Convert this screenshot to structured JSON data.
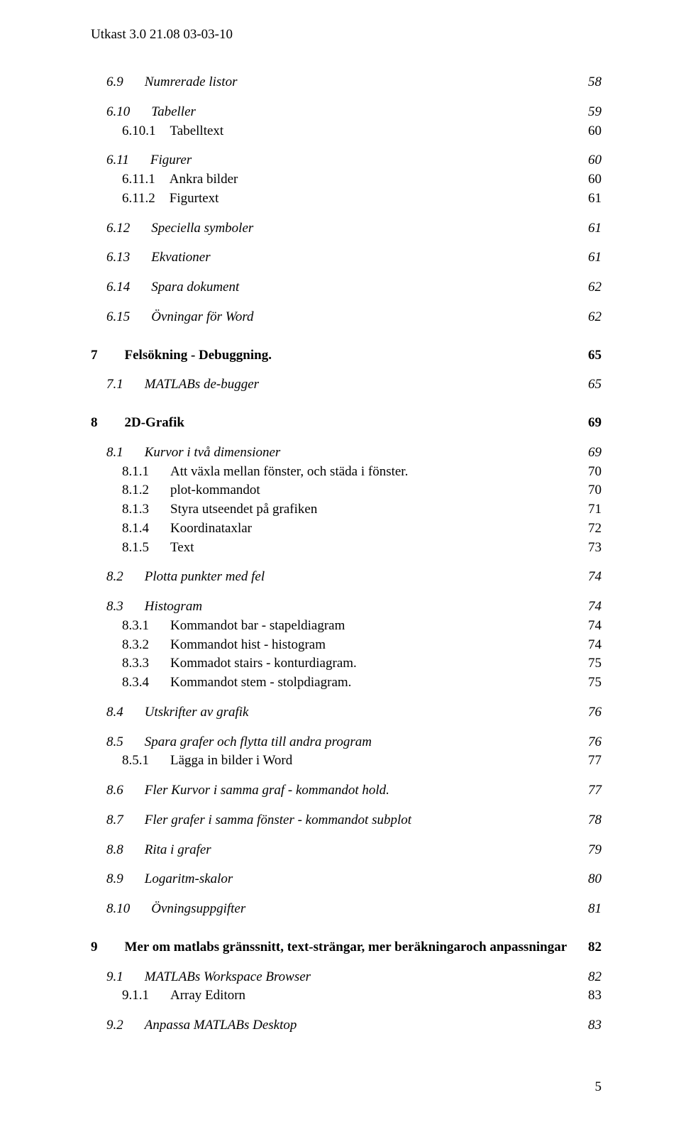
{
  "header": "Utkast 3.0  21.08 03-03-10",
  "page_number": "5",
  "entries": [
    {
      "lvl": 1,
      "num": "6.9",
      "title": "Numrerade listor",
      "page": "58",
      "style": "italic",
      "gap": ""
    },
    {
      "lvl": 1,
      "num": "6.10",
      "title": "Tabeller",
      "page": "59",
      "style": "italic",
      "gap": "md"
    },
    {
      "lvl": 2,
      "num": "6.10.1",
      "title": "Tabelltext",
      "page": "60",
      "style": "",
      "gap": "sm"
    },
    {
      "lvl": 1,
      "num": "6.11",
      "title": "Figurer",
      "page": "60",
      "style": "italic",
      "gap": "md"
    },
    {
      "lvl": 2,
      "num": "6.11.1",
      "title": "Ankra bilder",
      "page": "60",
      "style": "",
      "gap": "sm"
    },
    {
      "lvl": 2,
      "num": "6.11.2",
      "title": "Figurtext",
      "page": "61",
      "style": "",
      "gap": "sm"
    },
    {
      "lvl": 1,
      "num": "6.12",
      "title": "Speciella symboler",
      "page": "61",
      "style": "italic",
      "gap": "md"
    },
    {
      "lvl": 1,
      "num": "6.13",
      "title": "Ekvationer",
      "page": "61",
      "style": "italic",
      "gap": "md"
    },
    {
      "lvl": 1,
      "num": "6.14",
      "title": "Spara dokument",
      "page": "62",
      "style": "italic",
      "gap": "md"
    },
    {
      "lvl": 1,
      "num": "6.15",
      "title": "Övningar för Word",
      "page": "62",
      "style": "italic",
      "gap": "md"
    },
    {
      "lvl": 0,
      "num": "7",
      "title": "Felsökning - Debuggning.",
      "page": "65",
      "style": "bold",
      "gap": "lg"
    },
    {
      "lvl": 1,
      "num": "7.1",
      "title": "MATLABs de-bugger",
      "page": "65",
      "style": "italic sc",
      "gap": "md"
    },
    {
      "lvl": 0,
      "num": "8",
      "title": "2D-Grafik",
      "page": "69",
      "style": "bold",
      "gap": "lg"
    },
    {
      "lvl": 1,
      "num": "8.1",
      "title": "Kurvor i två dimensioner",
      "page": "69",
      "style": "italic",
      "gap": "md"
    },
    {
      "lvl": 2,
      "num": "8.1.1",
      "title": "Att växla mellan fönster, och städa i fönster.",
      "page": "70",
      "style": "",
      "gap": "sm"
    },
    {
      "lvl": 2,
      "num": "8.1.2",
      "title": "plot-kommandot",
      "page": "70",
      "style": "",
      "gap": "sm"
    },
    {
      "lvl": 2,
      "num": "8.1.3",
      "title": "Styra utseendet på grafiken",
      "page": "71",
      "style": "",
      "gap": "sm"
    },
    {
      "lvl": 2,
      "num": "8.1.4",
      "title": "Koordinataxlar",
      "page": "72",
      "style": "",
      "gap": "sm"
    },
    {
      "lvl": 2,
      "num": "8.1.5",
      "title": "Text",
      "page": "73",
      "style": "",
      "gap": "sm"
    },
    {
      "lvl": 1,
      "num": "8.2",
      "title": "Plotta punkter med fel",
      "page": "74",
      "style": "italic",
      "gap": "md"
    },
    {
      "lvl": 1,
      "num": "8.3",
      "title": "Histogram",
      "page": "74",
      "style": "italic",
      "gap": "md"
    },
    {
      "lvl": 2,
      "num": "8.3.1",
      "title": "Kommandot bar - stapeldiagram",
      "page": "74",
      "style": "",
      "gap": "sm"
    },
    {
      "lvl": 2,
      "num": "8.3.2",
      "title": "Kommandot hist - histogram",
      "page": "74",
      "style": "",
      "gap": "sm"
    },
    {
      "lvl": 2,
      "num": "8.3.3",
      "title": "Kommadot stairs - konturdiagram.",
      "page": "75",
      "style": "",
      "gap": "sm"
    },
    {
      "lvl": 2,
      "num": "8.3.4",
      "title": "Kommandot stem - stolpdiagram.",
      "page": "75",
      "style": "",
      "gap": "sm"
    },
    {
      "lvl": 1,
      "num": "8.4",
      "title": "Utskrifter av grafik",
      "page": "76",
      "style": "italic",
      "gap": "md"
    },
    {
      "lvl": 1,
      "num": "8.5",
      "title": "Spara grafer och flytta till andra program",
      "page": "76",
      "style": "italic",
      "gap": "md"
    },
    {
      "lvl": 2,
      "num": "8.5.1",
      "title": "Lägga in bilder i Word",
      "page": "77",
      "style": "",
      "gap": "sm"
    },
    {
      "lvl": 1,
      "num": "8.6",
      "title": "Fler Kurvor i samma graf - kommandot hold.",
      "page": "77",
      "style": "italic",
      "gap": "md"
    },
    {
      "lvl": 1,
      "num": "8.7",
      "title": "Fler grafer i samma fönster - kommandot subplot",
      "page": "78",
      "style": "italic",
      "gap": "md"
    },
    {
      "lvl": 1,
      "num": "8.8",
      "title": "Rita i grafer",
      "page": "79",
      "style": "italic",
      "gap": "md"
    },
    {
      "lvl": 1,
      "num": "8.9",
      "title": "Logaritm-skalor",
      "page": "80",
      "style": "italic",
      "gap": "md"
    },
    {
      "lvl": 1,
      "num": "8.10",
      "title": "Övningsuppgifter",
      "page": "81",
      "style": "italic",
      "gap": "md"
    },
    {
      "lvl": 0,
      "num": "9",
      "title": "Mer om matlabs gränssnitt, text-strängar, mer beräkningaroch anpassningar",
      "page": "82",
      "style": "bold",
      "gap": "lg"
    },
    {
      "lvl": 1,
      "num": "9.1",
      "title": "MATLABs Workspace Browser",
      "page": "82",
      "style": "italic sc",
      "gap": "md"
    },
    {
      "lvl": 2,
      "num": "9.1.1",
      "title": "Array Editorn",
      "page": "83",
      "style": "",
      "gap": "sm"
    },
    {
      "lvl": 1,
      "num": "9.2",
      "title": "Anpassa MATLABs Desktop",
      "page": "83",
      "style": "italic sc",
      "gap": "md"
    }
  ]
}
